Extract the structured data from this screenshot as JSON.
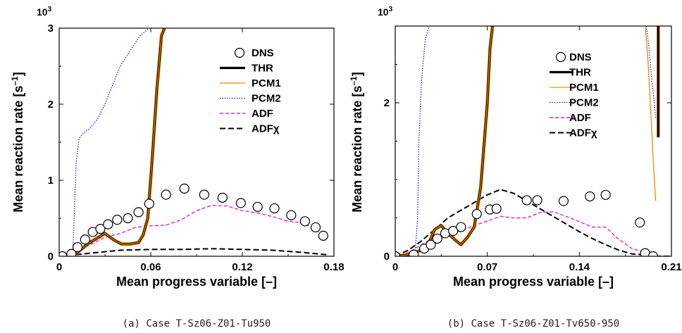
{
  "chart_data": [
    {
      "type": "line",
      "caption": "(a)  Case T-Sz06-Z01-Tu950",
      "xlabel": "Mean progress variable [–]",
      "ylabel": "Mean reaction rate [s",
      "ylabel_sup": "–1",
      "ylabel_close": "]",
      "y_multiplier_label": "10",
      "y_multiplier_exp": "3",
      "xlim": [
        0,
        0.18
      ],
      "ylim": [
        0,
        3
      ],
      "xticks": [
        0,
        0.06,
        0.12,
        0.18
      ],
      "xtick_labels": [
        "0",
        "0.06",
        "0.12",
        "0.18"
      ],
      "yticks": [
        0,
        1,
        2,
        3
      ],
      "ytick_labels": [
        "0",
        "1",
        "2",
        "3"
      ],
      "legend_position": "top-right",
      "grid": false,
      "series": [
        {
          "name": "DNS",
          "kind": "markers",
          "color": "#000000",
          "x": [
            0.002,
            0.008,
            0.012,
            0.017,
            0.022,
            0.027,
            0.032,
            0.038,
            0.045,
            0.052,
            0.059,
            0.07,
            0.082,
            0.095,
            0.107,
            0.119,
            0.13,
            0.141,
            0.152,
            0.161,
            0.168,
            0.173
          ],
          "y": [
            0.0,
            0.03,
            0.12,
            0.22,
            0.32,
            0.36,
            0.42,
            0.48,
            0.5,
            0.58,
            0.69,
            0.81,
            0.89,
            0.81,
            0.77,
            0.7,
            0.65,
            0.63,
            0.54,
            0.46,
            0.38,
            0.27
          ]
        },
        {
          "name": "THR",
          "kind": "thick",
          "color": "#000000",
          "x": [
            0.0,
            0.01,
            0.02,
            0.03,
            0.034,
            0.037,
            0.041,
            0.046,
            0.052,
            0.055,
            0.058,
            0.061,
            0.064,
            0.067,
            0.069
          ],
          "y": [
            0.0,
            0.02,
            0.18,
            0.3,
            0.24,
            0.2,
            0.16,
            0.16,
            0.18,
            0.28,
            0.5,
            1.3,
            2.2,
            2.9,
            3.0
          ]
        },
        {
          "name": "PCM1",
          "kind": "solid",
          "color": "#f08a00",
          "x": [
            0.0,
            0.01,
            0.02,
            0.03,
            0.034,
            0.037,
            0.041,
            0.046,
            0.052,
            0.055,
            0.058,
            0.061,
            0.064,
            0.067,
            0.069
          ],
          "y": [
            0.0,
            0.02,
            0.18,
            0.3,
            0.24,
            0.2,
            0.16,
            0.16,
            0.18,
            0.28,
            0.5,
            1.3,
            2.2,
            2.9,
            3.0
          ]
        },
        {
          "name": "PCM2",
          "kind": "dotted",
          "color": "#1f1fd6",
          "x": [
            0.0,
            0.009,
            0.011,
            0.013,
            0.016,
            0.02,
            0.025,
            0.03,
            0.035,
            0.04,
            0.047,
            0.053,
            0.06
          ],
          "y": [
            0.0,
            0.05,
            1.2,
            1.55,
            1.62,
            1.68,
            1.8,
            2.0,
            2.25,
            2.5,
            2.72,
            2.9,
            3.02
          ]
        },
        {
          "name": "ADF",
          "kind": "dashed",
          "color": "#e81fc7",
          "x": [
            0.0,
            0.01,
            0.02,
            0.03,
            0.04,
            0.05,
            0.06,
            0.07,
            0.08,
            0.09,
            0.1,
            0.11,
            0.12,
            0.13,
            0.14,
            0.15,
            0.16,
            0.17,
            0.175
          ],
          "y": [
            0.0,
            0.05,
            0.15,
            0.25,
            0.3,
            0.38,
            0.4,
            0.41,
            0.48,
            0.6,
            0.67,
            0.66,
            0.6,
            0.57,
            0.52,
            0.46,
            0.44,
            0.32,
            0.2
          ]
        },
        {
          "name": "ADFχ",
          "kind": "long-dashed",
          "color": "#000000",
          "x": [
            0.0,
            0.02,
            0.04,
            0.06,
            0.08,
            0.1,
            0.12,
            0.14,
            0.16,
            0.175
          ],
          "y": [
            0.0,
            0.04,
            0.08,
            0.09,
            0.09,
            0.1,
            0.09,
            0.08,
            0.05,
            0.02
          ]
        }
      ]
    },
    {
      "type": "line",
      "caption": "(b)  Case T-Sz06-Z01-Tv650-950",
      "xlabel": "Mean progress variable [–]",
      "ylabel": "Mean reaction rate [s",
      "ylabel_sup": "–1",
      "ylabel_close": "]",
      "y_multiplier_label": "10",
      "y_multiplier_exp": "3",
      "xlim": [
        0,
        0.21
      ],
      "ylim": [
        0,
        3
      ],
      "xticks": [
        0,
        0.07,
        0.14,
        0.21
      ],
      "xtick_labels": [
        "0",
        "0.07",
        "0.14",
        "0.21"
      ],
      "yticks": [
        0,
        2
      ],
      "ytick_labels": [
        "0",
        "2"
      ],
      "legend_position": "top-right",
      "grid": false,
      "series": [
        {
          "name": "DNS",
          "kind": "markers",
          "color": "#000000",
          "x": [
            0.0,
            0.014,
            0.022,
            0.027,
            0.032,
            0.038,
            0.044,
            0.05,
            0.062,
            0.072,
            0.077,
            0.1,
            0.108,
            0.128,
            0.148,
            0.16,
            0.186,
            0.19,
            0.196
          ],
          "y": [
            0.0,
            0.02,
            0.1,
            0.15,
            0.23,
            0.3,
            0.33,
            0.38,
            0.55,
            0.61,
            0.62,
            0.73,
            0.73,
            0.72,
            0.78,
            0.8,
            0.44,
            0.04,
            0.0
          ]
        },
        {
          "name": "THR",
          "kind": "thick",
          "color": "#000000",
          "x": [
            0.0,
            0.01,
            0.02,
            0.025,
            0.03,
            0.035,
            0.04,
            0.045,
            0.05,
            0.055,
            0.06,
            0.065,
            0.07,
            0.072,
            0.074
          ],
          "y": [
            0.0,
            0.02,
            0.08,
            0.15,
            0.35,
            0.4,
            0.3,
            0.22,
            0.15,
            0.25,
            0.38,
            0.9,
            2.0,
            2.7,
            3.0
          ],
          "x_b": [
            0.2,
            0.2
          ],
          "y_b": [
            1.55,
            3.0
          ]
        },
        {
          "name": "PCM1",
          "kind": "solid",
          "color": "#f08a00",
          "x": [
            0.0,
            0.01,
            0.02,
            0.025,
            0.03,
            0.035,
            0.04,
            0.045,
            0.05,
            0.055,
            0.06,
            0.065,
            0.07,
            0.072,
            0.074
          ],
          "y": [
            0.0,
            0.02,
            0.08,
            0.15,
            0.35,
            0.4,
            0.3,
            0.22,
            0.15,
            0.25,
            0.38,
            0.9,
            2.0,
            2.7,
            3.0
          ],
          "x_b": [
            0.19,
            0.192,
            0.194,
            0.196,
            0.198
          ],
          "y_b": [
            3.0,
            2.6,
            2.0,
            1.3,
            0.72
          ]
        },
        {
          "name": "PCM2",
          "kind": "dotted",
          "color": "#1f1fd6",
          "x": [
            0.0,
            0.015,
            0.017,
            0.018,
            0.02,
            0.023,
            0.026
          ],
          "y": [
            0.0,
            0.02,
            0.5,
            1.5,
            2.3,
            2.85,
            3.0
          ],
          "x_b": [
            0.191,
            0.193,
            0.195,
            0.197,
            0.198
          ],
          "y_b": [
            3.0,
            2.7,
            2.3,
            2.0,
            1.8
          ]
        },
        {
          "name": "ADF",
          "kind": "dashed",
          "color": "#e81fc7",
          "x": [
            0.0,
            0.01,
            0.02,
            0.03,
            0.04,
            0.05,
            0.06,
            0.07,
            0.08,
            0.09,
            0.1,
            0.11,
            0.12,
            0.13,
            0.14,
            0.15,
            0.16,
            0.17,
            0.18,
            0.19
          ],
          "y": [
            0.0,
            0.05,
            0.15,
            0.25,
            0.3,
            0.33,
            0.4,
            0.46,
            0.52,
            0.5,
            0.5,
            0.57,
            0.58,
            0.52,
            0.45,
            0.38,
            0.38,
            0.22,
            0.1,
            0.05
          ]
        },
        {
          "name": "ADFχ",
          "kind": "long-dashed",
          "color": "#000000",
          "x": [
            0.0,
            0.01,
            0.02,
            0.03,
            0.04,
            0.05,
            0.06,
            0.07,
            0.08,
            0.09,
            0.1,
            0.11,
            0.12,
            0.13,
            0.14,
            0.15,
            0.16,
            0.17,
            0.18,
            0.19,
            0.2,
            0.21
          ],
          "y": [
            0.0,
            0.08,
            0.2,
            0.35,
            0.5,
            0.6,
            0.7,
            0.8,
            0.87,
            0.82,
            0.72,
            0.62,
            0.52,
            0.42,
            0.32,
            0.23,
            0.15,
            0.08,
            0.03,
            0.02,
            0.0,
            0.0
          ]
        }
      ]
    }
  ]
}
